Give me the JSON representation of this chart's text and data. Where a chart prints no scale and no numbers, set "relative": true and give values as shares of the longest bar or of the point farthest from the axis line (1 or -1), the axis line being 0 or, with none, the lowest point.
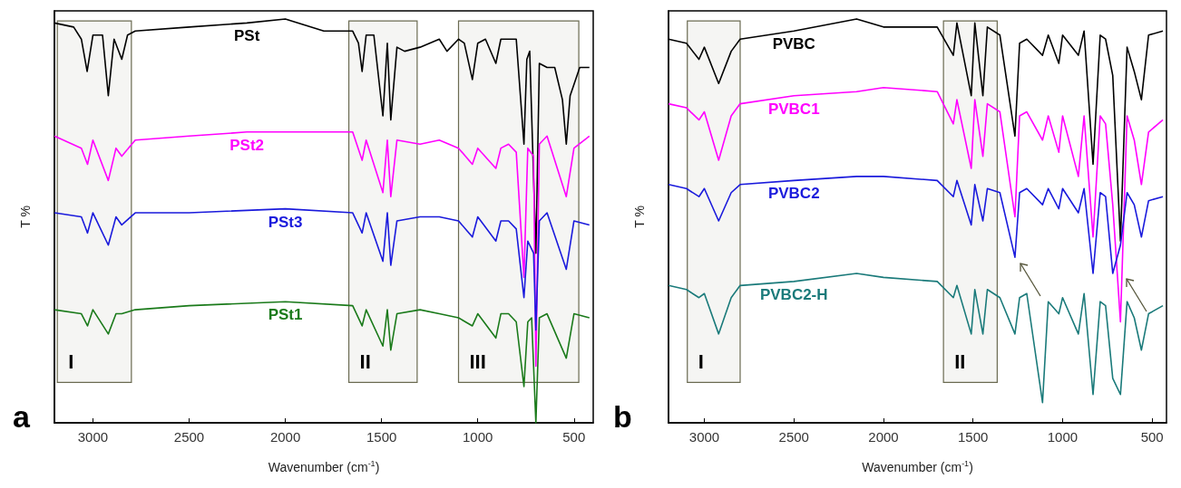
{
  "chart_data": [
    {
      "type": "line",
      "relative": true,
      "xlabel": "Wavenumber (cm$^{-1}$)",
      "ylabel": "T %",
      "xlim": [
        3200,
        400
      ],
      "xticks": [
        3000,
        2500,
        2000,
        1500,
        1000,
        500
      ],
      "grid": false,
      "legend": false,
      "marker": "none",
      "line_style": "solid",
      "annotations": [
        "a"
      ],
      "bands": [
        {
          "axis": "x",
          "from": 3185,
          "to": 2800,
          "label": "I"
        },
        {
          "axis": "x",
          "from": 1670,
          "to": 1315,
          "label": "II"
        },
        {
          "axis": "x",
          "from": 1100,
          "to": 475,
          "label": "III"
        }
      ],
      "x": [
        3200,
        3100,
        3060,
        3030,
        3000,
        2950,
        2920,
        2890,
        2850,
        2820,
        2780,
        2500,
        2200,
        2000,
        1800,
        1650,
        1620,
        1601,
        1580,
        1540,
        1493,
        1470,
        1452,
        1420,
        1380,
        1300,
        1200,
        1160,
        1100,
        1070,
        1028,
        1000,
        960,
        906,
        880,
        840,
        800,
        760,
        745,
        730,
        698,
        680,
        640,
        600,
        560,
        540,
        520,
        470,
        420
      ],
      "series": [
        {
          "name": "PSt",
          "color": "#000000",
          "values": [
            0.99,
            0.98,
            0.95,
            0.87,
            0.96,
            0.96,
            0.81,
            0.95,
            0.9,
            0.96,
            0.97,
            0.98,
            0.99,
            1.0,
            0.97,
            0.97,
            0.94,
            0.87,
            0.96,
            0.96,
            0.76,
            0.94,
            0.75,
            0.93,
            0.92,
            0.93,
            0.95,
            0.92,
            0.95,
            0.94,
            0.85,
            0.94,
            0.95,
            0.89,
            0.95,
            0.95,
            0.95,
            0.69,
            0.9,
            0.92,
            0.42,
            0.89,
            0.88,
            0.88,
            0.8,
            0.69,
            0.81,
            0.88,
            0.88
          ]
        },
        {
          "name": "PSt2",
          "color": "#ff00ff",
          "x": [
            3200,
            3060,
            3028,
            3000,
            2920,
            2880,
            2850,
            2780,
            2500,
            2200,
            2000,
            1650,
            1601,
            1580,
            1493,
            1470,
            1452,
            1420,
            1300,
            1200,
            1100,
            1028,
            1000,
            906,
            880,
            840,
            800,
            760,
            740,
            710,
            698,
            680,
            640,
            540,
            500,
            420
          ],
          "values": [
            0.71,
            0.68,
            0.64,
            0.7,
            0.6,
            0.68,
            0.66,
            0.7,
            0.71,
            0.72,
            0.72,
            0.72,
            0.65,
            0.7,
            0.57,
            0.7,
            0.56,
            0.7,
            0.69,
            0.7,
            0.68,
            0.64,
            0.68,
            0.63,
            0.68,
            0.69,
            0.67,
            0.36,
            0.68,
            0.66,
            0.14,
            0.69,
            0.71,
            0.56,
            0.68,
            0.71
          ]
        },
        {
          "name": "PSt3",
          "color": "#1a1adc",
          "x": [
            3200,
            3060,
            3028,
            3000,
            2920,
            2880,
            2850,
            2780,
            2500,
            2000,
            1650,
            1601,
            1580,
            1493,
            1470,
            1452,
            1420,
            1300,
            1200,
            1100,
            1028,
            1000,
            906,
            880,
            840,
            800,
            760,
            740,
            710,
            698,
            680,
            640,
            540,
            500,
            420
          ],
          "values": [
            0.52,
            0.51,
            0.47,
            0.52,
            0.44,
            0.51,
            0.49,
            0.52,
            0.52,
            0.53,
            0.52,
            0.47,
            0.52,
            0.4,
            0.52,
            0.39,
            0.5,
            0.51,
            0.51,
            0.5,
            0.46,
            0.51,
            0.45,
            0.5,
            0.5,
            0.48,
            0.31,
            0.45,
            0.42,
            0.23,
            0.5,
            0.52,
            0.38,
            0.5,
            0.49
          ]
        },
        {
          "name": "PSt1",
          "color": "#1a7a1a",
          "x": [
            3200,
            3060,
            3028,
            3000,
            2920,
            2880,
            2850,
            2780,
            2500,
            2000,
            1650,
            1601,
            1580,
            1493,
            1470,
            1452,
            1420,
            1300,
            1200,
            1100,
            1028,
            1000,
            906,
            880,
            840,
            800,
            760,
            740,
            720,
            698,
            680,
            640,
            540,
            500,
            420
          ],
          "values": [
            0.28,
            0.27,
            0.24,
            0.28,
            0.22,
            0.27,
            0.27,
            0.28,
            0.29,
            0.3,
            0.29,
            0.24,
            0.28,
            0.19,
            0.28,
            0.18,
            0.27,
            0.28,
            0.27,
            0.26,
            0.24,
            0.27,
            0.21,
            0.27,
            0.27,
            0.25,
            0.09,
            0.25,
            0.26,
            0,
            0.26,
            0.27,
            0.16,
            0.27,
            0.26
          ]
        }
      ]
    },
    {
      "type": "line",
      "relative": true,
      "xlabel": "Wavenumber (cm$^{-1}$)",
      "ylabel": "T %",
      "xlim": [
        3200,
        420
      ],
      "xticks": [
        3000,
        2500,
        2000,
        1500,
        1000,
        500
      ],
      "grid": false,
      "legend": false,
      "marker": "none",
      "line_style": "solid",
      "annotations": [
        "b"
      ],
      "bands": [
        {
          "axis": "x",
          "from": 3095,
          "to": 2800,
          "label": "I"
        },
        {
          "axis": "x",
          "from": 1665,
          "to": 1365,
          "label": "II"
        }
      ],
      "x": [
        3200,
        3100,
        3030,
        3000,
        2920,
        2850,
        2800,
        2500,
        2150,
        2000,
        1700,
        1610,
        1590,
        1510,
        1490,
        1445,
        1420,
        1350,
        1266,
        1240,
        1200,
        1112,
        1080,
        1021,
        1000,
        912,
        880,
        830,
        790,
        760,
        720,
        677,
        640,
        600,
        560,
        520,
        440
      ],
      "series": [
        {
          "name": "PVBC",
          "color": "#000000",
          "values": [
            0.95,
            0.94,
            0.9,
            0.93,
            0.84,
            0.92,
            0.95,
            0.97,
            1.0,
            0.98,
            0.98,
            0.91,
            0.99,
            0.81,
            0.99,
            0.81,
            0.98,
            0.96,
            0.71,
            0.94,
            0.95,
            0.91,
            0.96,
            0.89,
            0.96,
            0.91,
            0.97,
            0.64,
            0.96,
            0.95,
            0.86,
            0.45,
            0.93,
            0.87,
            0.8,
            0.96,
            0.97
          ]
        },
        {
          "name": "PVBC1",
          "color": "#ff00ff",
          "values": [
            0.79,
            0.78,
            0.75,
            0.77,
            0.65,
            0.76,
            0.79,
            0.81,
            0.82,
            0.83,
            0.82,
            0.74,
            0.8,
            0.63,
            0.8,
            0.66,
            0.79,
            0.77,
            0.51,
            0.76,
            0.77,
            0.7,
            0.76,
            0.67,
            0.76,
            0.61,
            0.76,
            0.46,
            0.76,
            0.74,
            0.54,
            0.25,
            0.76,
            0.7,
            0.59,
            0.72,
            0.75
          ]
        },
        {
          "name": "PVBC2",
          "color": "#1a1adc",
          "values": [
            0.59,
            0.58,
            0.56,
            0.58,
            0.5,
            0.57,
            0.59,
            0.6,
            0.61,
            0.61,
            0.6,
            0.56,
            0.6,
            0.49,
            0.59,
            0.5,
            0.58,
            0.57,
            0.41,
            0.57,
            0.58,
            0.54,
            0.58,
            0.53,
            0.58,
            0.52,
            0.58,
            0.37,
            0.57,
            0.56,
            0.37,
            0.44,
            0.57,
            0.54,
            0.46,
            0.55,
            0.56
          ]
        },
        {
          "name": "PVBC2-H",
          "color": "#1a7a7a",
          "values": [
            0.34,
            0.33,
            0.31,
            0.32,
            0.22,
            0.31,
            0.34,
            0.35,
            0.37,
            0.36,
            0.35,
            0.31,
            0.34,
            0.22,
            0.33,
            0.22,
            0.33,
            0.31,
            0.22,
            0.31,
            0.32,
            0.05,
            0.3,
            0.27,
            0.31,
            0.22,
            0.32,
            0.07,
            0.3,
            0.29,
            0.11,
            0.07,
            0.3,
            0.26,
            0.18,
            0.27,
            0.29
          ]
        }
      ]
    }
  ]
}
